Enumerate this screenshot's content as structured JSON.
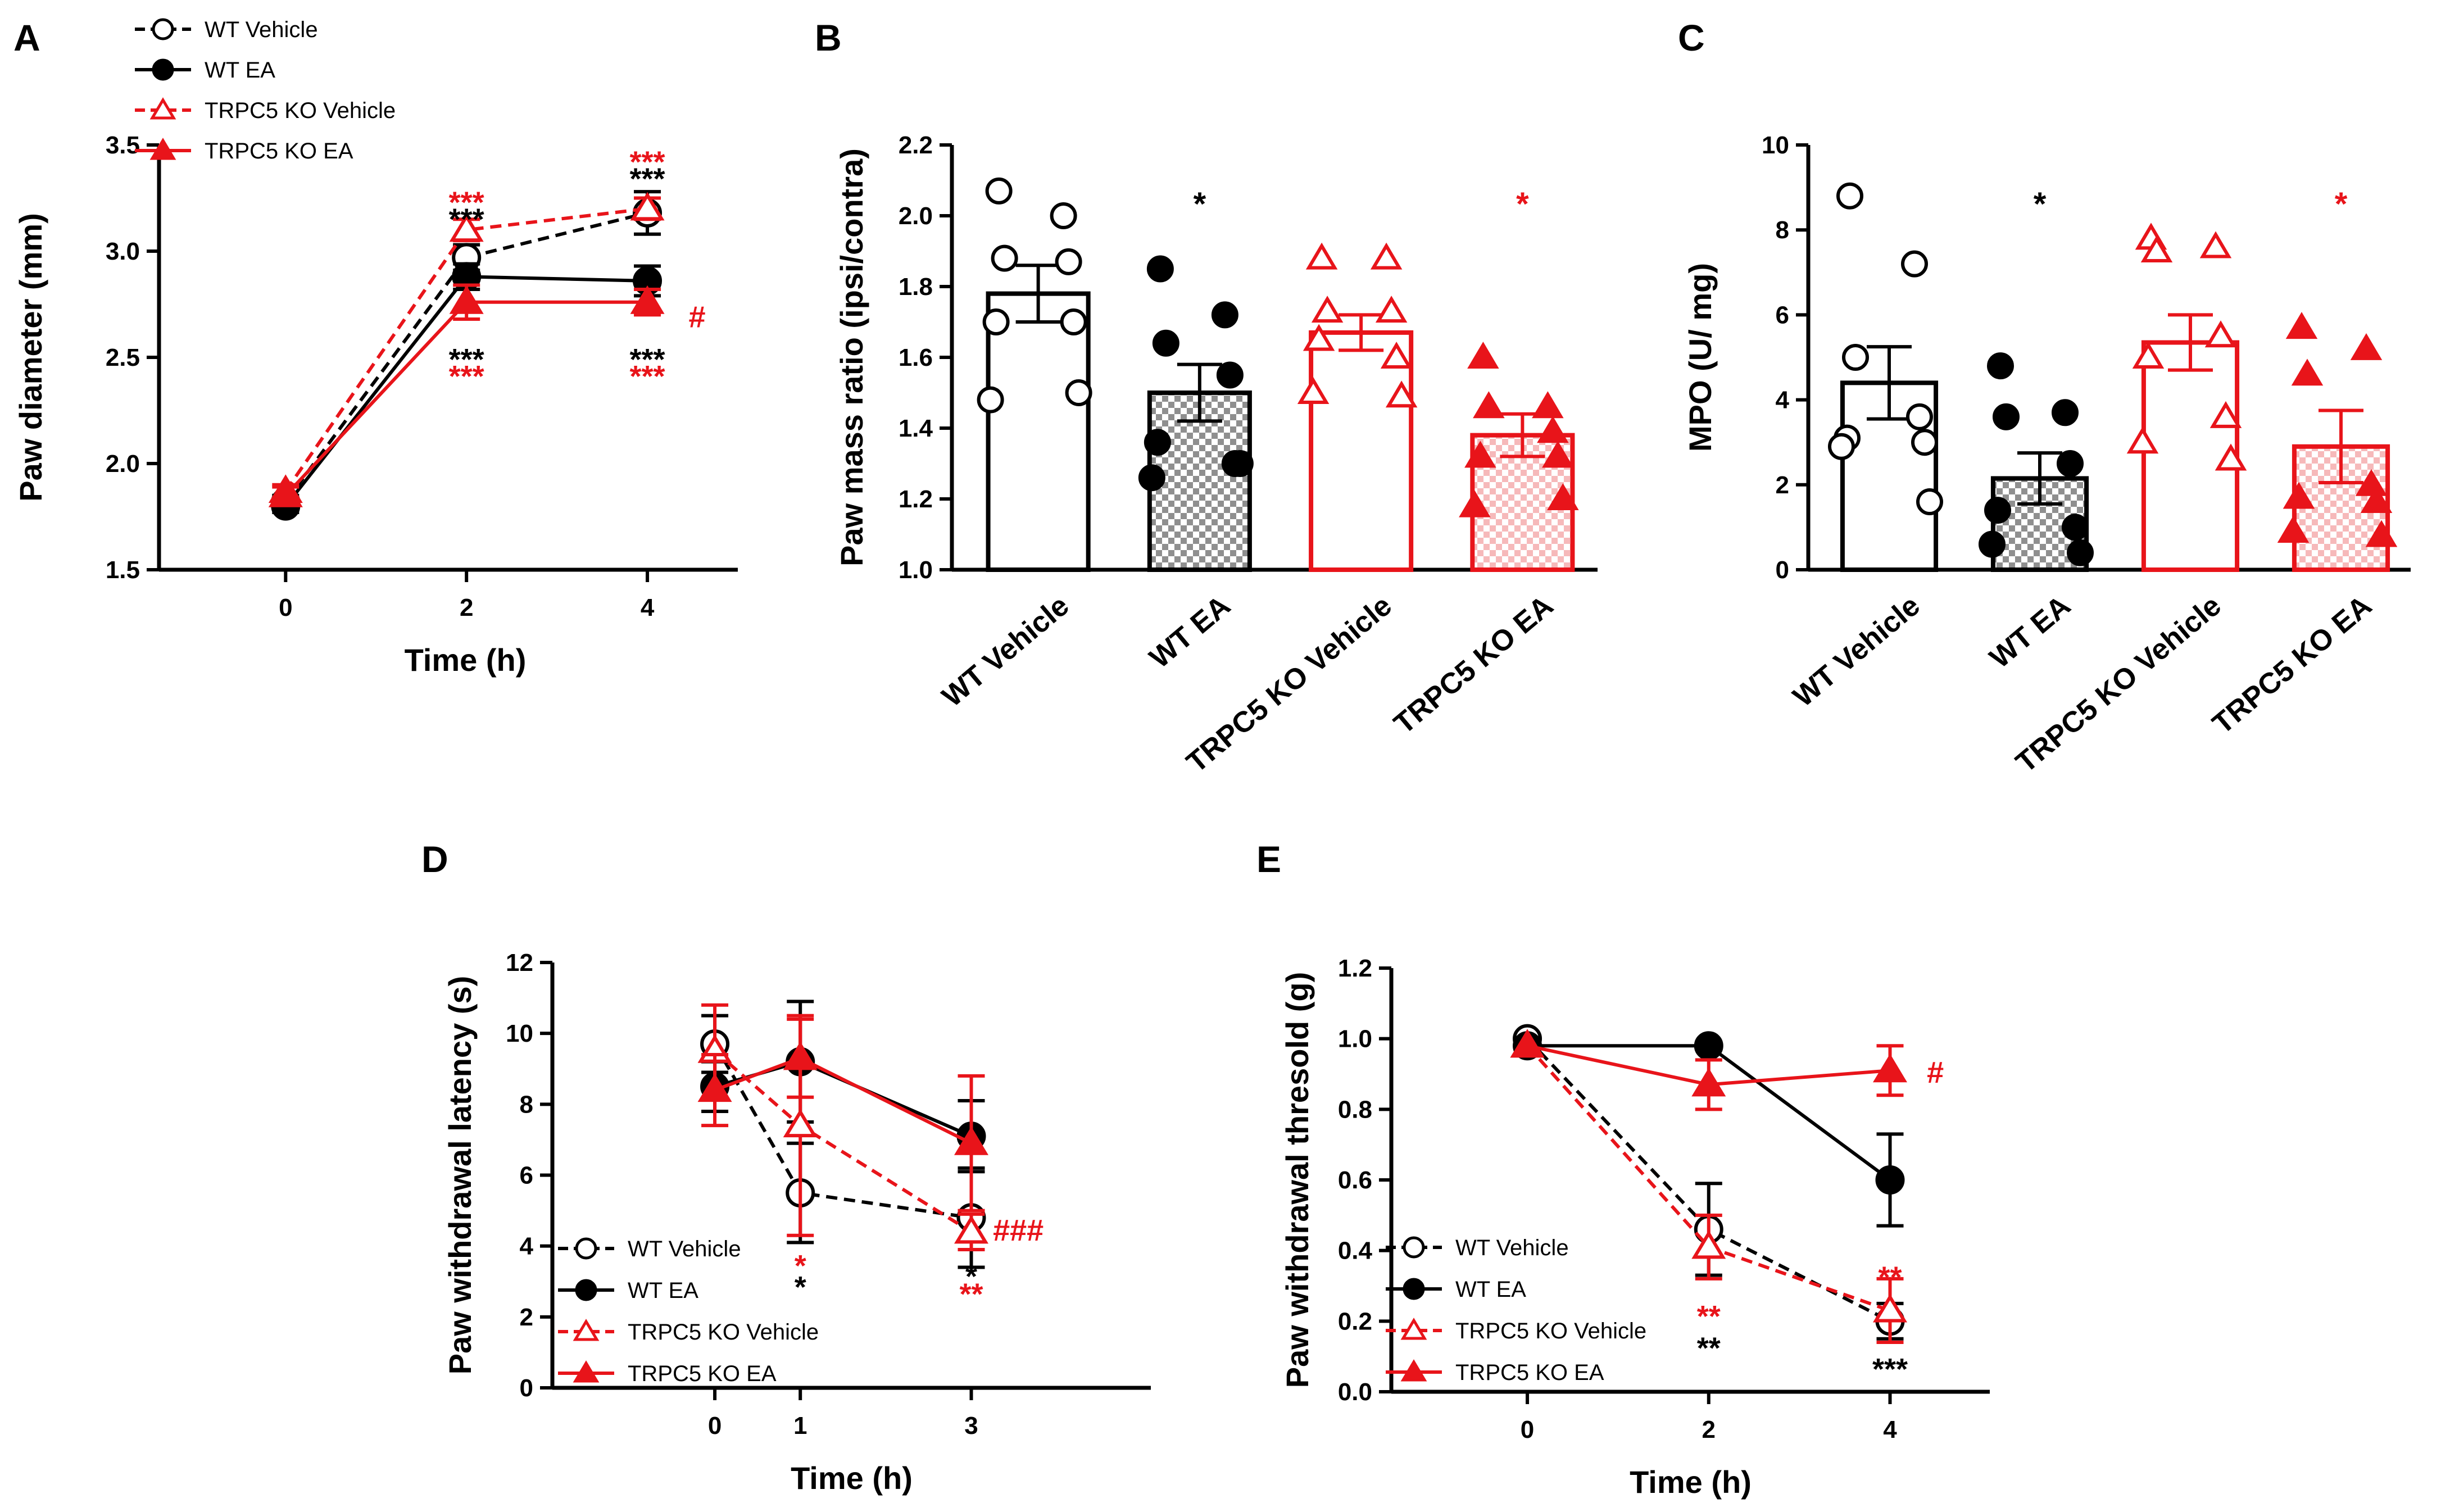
{
  "colors": {
    "black": "#000000",
    "red": "#e8141a",
    "red_hatch": "#f6b9ba",
    "gray_hatch": "#8f8f8f"
  },
  "legend_entries": [
    "WT Vehicle",
    "WT EA",
    "TRPC5 KO Vehicle",
    "TRPC5 KO EA"
  ],
  "chart_data": [
    {
      "id": "A",
      "panel_label": "A",
      "type": "line",
      "xlabel": "Time (h)",
      "ylabel": "Paw diameter (mm)",
      "x": [
        0,
        2,
        4
      ],
      "xticks": [
        "0",
        "2",
        "4"
      ],
      "xlim": [
        -1.4,
        5.0
      ],
      "ylim": [
        1.5,
        3.5
      ],
      "yticks": [
        "1.5",
        "2.0",
        "2.5",
        "3.0",
        "3.5"
      ],
      "series": [
        {
          "name": "WT Vehicle",
          "color": "#000000",
          "filled": false,
          "marker": "circle",
          "dash": true,
          "values": [
            1.82,
            2.97,
            3.18
          ],
          "err": [
            0.03,
            0.06,
            0.1
          ]
        },
        {
          "name": "WT EA",
          "color": "#000000",
          "filled": true,
          "marker": "circle",
          "dash": false,
          "values": [
            1.8,
            2.88,
            2.86
          ],
          "err": [
            0.03,
            0.06,
            0.07
          ]
        },
        {
          "name": "TRPC5 KO Vehicle",
          "color": "#e8141a",
          "filled": false,
          "marker": "triangle",
          "dash": true,
          "values": [
            1.87,
            3.1,
            3.2
          ],
          "err": [
            0.03,
            0.05,
            0.05
          ]
        },
        {
          "name": "TRPC5 KO EA",
          "color": "#e8141a",
          "filled": true,
          "marker": "triangle",
          "dash": false,
          "values": [
            1.85,
            2.76,
            2.76
          ],
          "err": [
            0.04,
            0.08,
            0.06
          ]
        }
      ],
      "annotations": [
        {
          "text": "***",
          "x": 2,
          "y": 3.24,
          "color": "#e8141a"
        },
        {
          "text": "***",
          "x": 2,
          "y": 3.16,
          "color": "#000000"
        },
        {
          "text": "***",
          "x": 2,
          "y": 2.5,
          "color": "#000000"
        },
        {
          "text": "***",
          "x": 2,
          "y": 2.42,
          "color": "#e8141a"
        },
        {
          "text": "***",
          "x": 4,
          "y": 3.43,
          "color": "#e8141a"
        },
        {
          "text": "***",
          "x": 4,
          "y": 3.35,
          "color": "#000000"
        },
        {
          "text": "***",
          "x": 4,
          "y": 2.5,
          "color": "#000000"
        },
        {
          "text": "***",
          "x": 4,
          "y": 2.42,
          "color": "#e8141a"
        },
        {
          "text": "#",
          "x": 4.55,
          "y": 2.7,
          "color": "#e8141a"
        }
      ]
    },
    {
      "id": "B",
      "panel_label": "B",
      "type": "bar",
      "ylabel": "Paw mass ratio (ipsi/contra)",
      "categories": [
        "WT Vehicle",
        "WT EA",
        "TRPC5 KO Vehicle",
        "TRPC5 KO EA"
      ],
      "ylim": [
        1.0,
        2.2
      ],
      "yticks": [
        "1.0",
        "1.2",
        "1.4",
        "1.6",
        "1.8",
        "2.0",
        "2.2"
      ],
      "values": [
        1.78,
        1.5,
        1.67,
        1.38
      ],
      "err": [
        0.08,
        0.08,
        0.05,
        0.06
      ],
      "points": [
        [
          2.07,
          2.0,
          1.88,
          1.87,
          1.7,
          1.7,
          1.48,
          1.5
        ],
        [
          1.85,
          1.72,
          1.64,
          1.55,
          1.36,
          1.3,
          1.26,
          1.3
        ],
        [
          1.88,
          1.88,
          1.73,
          1.73,
          1.65,
          1.6,
          1.5,
          1.49
        ],
        [
          1.6,
          1.46,
          1.46,
          1.39,
          1.32,
          1.32,
          1.18,
          1.2
        ]
      ],
      "stars": [
        "",
        "*",
        "",
        "*"
      ],
      "star_colors": [
        "#000000",
        "#000000",
        "#e8141a",
        "#e8141a"
      ]
    },
    {
      "id": "C",
      "panel_label": "C",
      "type": "bar",
      "ylabel": "MPO (U/ mg)",
      "categories": [
        "WT Vehicle",
        "WT EA",
        "TRPC5 KO Vehicle",
        "TRPC5 KO EA"
      ],
      "ylim": [
        0,
        10
      ],
      "yticks": [
        "0",
        "2",
        "4",
        "6",
        "8",
        "10"
      ],
      "values": [
        4.4,
        2.15,
        5.35,
        2.9
      ],
      "err": [
        0.85,
        0.6,
        0.65,
        0.85
      ],
      "points": [
        [
          8.8,
          7.2,
          5.0,
          3.6,
          3.1,
          3.0,
          2.9,
          1.6
        ],
        [
          4.8,
          3.7,
          3.6,
          2.5,
          1.4,
          1.0,
          0.6,
          0.4
        ],
        [
          7.8,
          7.6,
          7.5,
          5.5,
          5.0,
          3.6,
          3.0,
          2.6
        ],
        [
          5.7,
          5.2,
          4.6,
          2.0,
          1.7,
          1.6,
          0.9,
          0.8
        ]
      ],
      "stars": [
        "",
        "*",
        "",
        "*"
      ],
      "star_colors": [
        "#000000",
        "#000000",
        "#e8141a",
        "#e8141a"
      ]
    },
    {
      "id": "D",
      "panel_label": "D",
      "type": "line",
      "xlabel": "Time (h)",
      "ylabel": "Paw withdrawal latency (s)",
      "x": [
        0,
        1,
        3
      ],
      "xticks": [
        "0",
        "1",
        "3"
      ],
      "xlim": [
        -1.9,
        5.1
      ],
      "ylim": [
        0,
        12
      ],
      "yticks": [
        "0",
        "2",
        "4",
        "6",
        "8",
        "10",
        "12"
      ],
      "series": [
        {
          "name": "WT Vehicle",
          "color": "#000000",
          "filled": false,
          "marker": "circle",
          "dash": true,
          "values": [
            9.7,
            5.5,
            4.8
          ],
          "err": [
            0.8,
            1.4,
            1.4
          ]
        },
        {
          "name": "WT EA",
          "color": "#000000",
          "filled": true,
          "marker": "circle",
          "dash": false,
          "values": [
            8.5,
            9.2,
            7.1
          ],
          "err": [
            0.7,
            1.7,
            1.0
          ]
        },
        {
          "name": "TRPC5 KO Vehicle",
          "color": "#e8141a",
          "filled": false,
          "marker": "triangle",
          "dash": true,
          "values": [
            9.5,
            7.4,
            4.4
          ],
          "err": [
            1.3,
            3.1,
            0.5
          ]
        },
        {
          "name": "TRPC5 KO EA",
          "color": "#e8141a",
          "filled": true,
          "marker": "triangle",
          "dash": false,
          "values": [
            8.4,
            9.3,
            6.9
          ],
          "err": [
            1.0,
            1.1,
            1.9
          ]
        }
      ],
      "annotations": [
        {
          "text": "*",
          "x": 1,
          "y": 3.5,
          "color": "#e8141a"
        },
        {
          "text": "*",
          "x": 1,
          "y": 2.9,
          "color": "#000000"
        },
        {
          "text": "*",
          "x": 3,
          "y": 3.2,
          "color": "#000000"
        },
        {
          "text": "**",
          "x": 3,
          "y": 2.7,
          "color": "#e8141a"
        },
        {
          "text": "###",
          "x": 3.55,
          "y": 4.5,
          "color": "#e8141a"
        }
      ],
      "legend": "bottom-left"
    },
    {
      "id": "E",
      "panel_label": "E",
      "type": "line",
      "xlabel": "Time (h)",
      "ylabel": "Paw withdrawal thresold (g)",
      "x": [
        0,
        2,
        4
      ],
      "xticks": [
        "0",
        "2",
        "4"
      ],
      "xlim": [
        -1.5,
        5.1
      ],
      "ylim": [
        0,
        1.2
      ],
      "yticks": [
        "0.0",
        "0.2",
        "0.4",
        "0.6",
        "0.8",
        "1.0",
        "1.2"
      ],
      "series": [
        {
          "name": "WT Vehicle",
          "color": "#000000",
          "filled": false,
          "marker": "circle",
          "dash": true,
          "values": [
            1.0,
            0.46,
            0.2
          ],
          "err": [
            0.0,
            0.13,
            0.05
          ]
        },
        {
          "name": "WT EA",
          "color": "#000000",
          "filled": true,
          "marker": "circle",
          "dash": false,
          "values": [
            0.98,
            0.98,
            0.6
          ],
          "err": [
            0.0,
            0.0,
            0.13
          ]
        },
        {
          "name": "TRPC5 KO Vehicle",
          "color": "#e8141a",
          "filled": false,
          "marker": "triangle",
          "dash": true,
          "values": [
            0.98,
            0.41,
            0.23
          ],
          "err": [
            0.0,
            0.09,
            0.09
          ]
        },
        {
          "name": "TRPC5 KO EA",
          "color": "#e8141a",
          "filled": true,
          "marker": "triangle",
          "dash": false,
          "values": [
            0.98,
            0.87,
            0.91
          ],
          "err": [
            0.0,
            0.07,
            0.07
          ]
        }
      ],
      "annotations": [
        {
          "text": "**",
          "x": 2,
          "y": 0.22,
          "color": "#e8141a"
        },
        {
          "text": "**",
          "x": 2,
          "y": 0.13,
          "color": "#000000"
        },
        {
          "text": "**",
          "x": 4,
          "y": 0.33,
          "color": "#e8141a"
        },
        {
          "text": "***",
          "x": 4,
          "y": 0.07,
          "color": "#000000"
        },
        {
          "text": "#",
          "x": 4.5,
          "y": 0.91,
          "color": "#e8141a"
        }
      ],
      "legend": "bottom-left"
    }
  ]
}
